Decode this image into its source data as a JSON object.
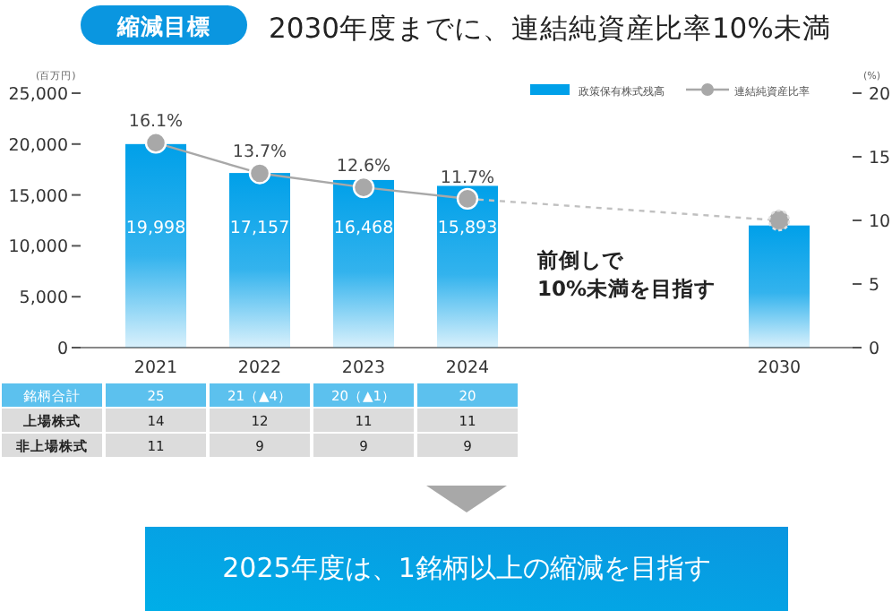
{
  "chart_data": {
    "type": "bar",
    "title": "2030年度までに、連結純資産比率10%未満",
    "ylabel": "(百万円)",
    "y2label": "(%)",
    "categories": [
      "2021",
      "2022",
      "2023",
      "2024",
      null,
      null,
      "2030"
    ],
    "series": [
      {
        "name": "政策保有株式残高",
        "color": "#00a0e9",
        "values": [
          19998,
          17157,
          16468,
          15893,
          null,
          null,
          12000
        ],
        "value_labels": [
          "19,998",
          "17,157",
          "16,468",
          "15,893",
          null,
          null,
          null
        ]
      },
      {
        "name": "連結純資産比率",
        "type": "line",
        "axis": "y2",
        "color": "#a8a8a8",
        "marker": "circle",
        "line_style": "solid",
        "values": [
          16.1,
          13.7,
          12.6,
          11.7,
          null,
          null,
          10
        ],
        "value_labels": [
          "16.1%",
          "13.7%",
          "12.6%",
          "11.7%",
          null,
          null,
          null
        ]
      }
    ],
    "ylim": [
      0,
      25000
    ],
    "yticks": [
      0,
      {
        "value": 5000,
        "label": "5,000"
      },
      {
        "value": 10000,
        "label": "10,000"
      },
      {
        "value": 15000,
        "label": "15,000"
      },
      {
        "value": 20000,
        "label": "20,000"
      },
      {
        "value": 25000,
        "label": "25,000"
      }
    ],
    "y2lim": [
      0,
      20
    ],
    "y2ticks": [
      0,
      5,
      10,
      15,
      20
    ],
    "legend": "top right",
    "grid": false,
    "annotations": [
      "縮減目標",
      "前倒しで\n10%未満を目指す",
      "銘柄合計",
      "25",
      "21（▲4）",
      "20（▲1）",
      "20",
      "上場株式",
      "14",
      "12",
      "11",
      "11",
      "非上場株式",
      "11",
      "9",
      "9",
      "9",
      "2025年度は、1銘柄以上の縮減を目指す"
    ]
  }
}
